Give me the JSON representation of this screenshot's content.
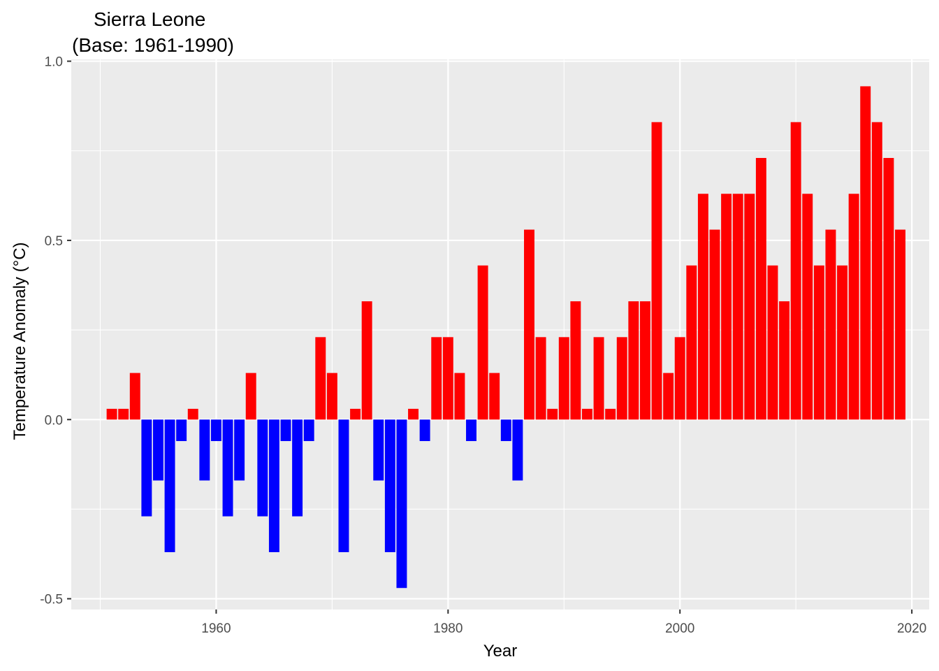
{
  "chart_data": {
    "type": "bar",
    "title": "Sierra Leone",
    "subtitle": "(Base: 1961-1990)",
    "xlabel": "Year",
    "ylabel": "Temperature Anomaly (°C)",
    "xlim": [
      1947.5,
      2021.5
    ],
    "ylim": [
      -0.53,
      1.005
    ],
    "x_ticks": [
      1960,
      1980,
      2000,
      2020
    ],
    "x_tick_labels": [
      "1960",
      "1980",
      "2000",
      "2020"
    ],
    "y_ticks": [
      -0.5,
      0.0,
      0.5,
      1.0
    ],
    "y_tick_labels": [
      "-0.5",
      "0.0",
      "0.5",
      "1.0"
    ],
    "grid": true,
    "legend": "none",
    "colors": {
      "positive": "#ff0000",
      "negative": "#0000ff",
      "panel": "#ebebeb",
      "grid": "#ffffff"
    },
    "years": [
      1951,
      1952,
      1953,
      1954,
      1955,
      1956,
      1957,
      1958,
      1959,
      1960,
      1961,
      1962,
      1963,
      1964,
      1965,
      1966,
      1967,
      1968,
      1969,
      1970,
      1971,
      1972,
      1973,
      1974,
      1975,
      1976,
      1977,
      1978,
      1979,
      1980,
      1981,
      1982,
      1983,
      1984,
      1985,
      1986,
      1987,
      1988,
      1989,
      1990,
      1991,
      1992,
      1993,
      1994,
      1995,
      1996,
      1997,
      1998,
      1999,
      2000,
      2001,
      2002,
      2003,
      2004,
      2005,
      2006,
      2007,
      2008,
      2009,
      2010,
      2011,
      2012,
      2013,
      2014,
      2015,
      2016,
      2017,
      2018,
      2019
    ],
    "values": [
      0.03,
      0.03,
      0.13,
      -0.27,
      -0.17,
      -0.37,
      -0.06,
      0.03,
      -0.17,
      -0.06,
      -0.27,
      -0.17,
      0.13,
      -0.27,
      -0.37,
      -0.06,
      -0.27,
      -0.06,
      0.23,
      0.13,
      -0.37,
      0.03,
      0.33,
      -0.17,
      -0.37,
      -0.47,
      0.03,
      -0.06,
      0.23,
      0.23,
      0.13,
      -0.06,
      0.43,
      0.13,
      -0.06,
      -0.17,
      0.53,
      0.23,
      0.03,
      0.23,
      0.33,
      0.03,
      0.23,
      0.03,
      0.23,
      0.33,
      0.33,
      0.83,
      0.13,
      0.23,
      0.43,
      0.63,
      0.53,
      0.63,
      0.63,
      0.63,
      0.73,
      0.43,
      0.33,
      0.83,
      0.63,
      0.43,
      0.53,
      0.43,
      0.63,
      0.93,
      0.83,
      0.73,
      0.53
    ]
  }
}
